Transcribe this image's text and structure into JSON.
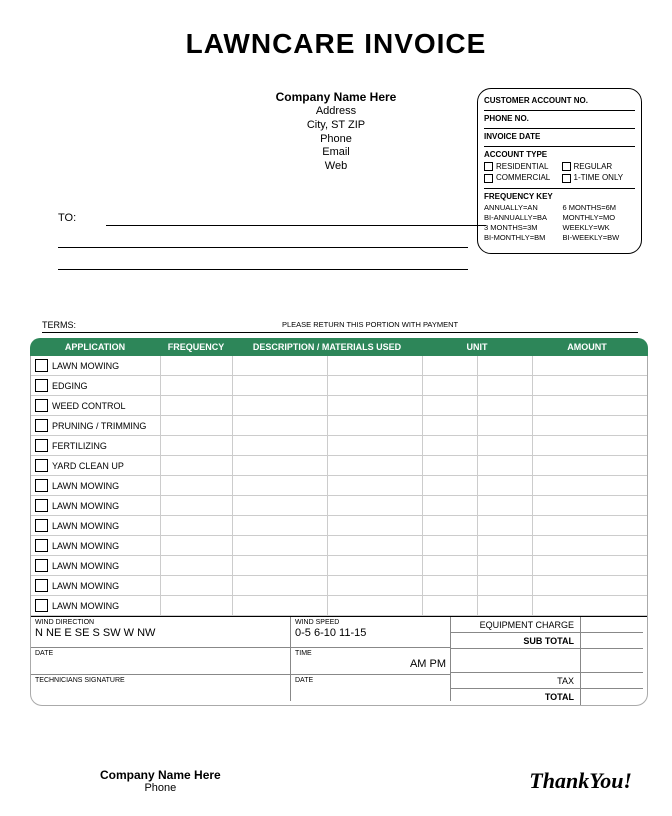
{
  "title": "LAWNCARE INVOICE",
  "company": {
    "name": "Company Name Here",
    "address": "Address",
    "csz": "City, ST ZIP",
    "phone": "Phone",
    "email": "Email",
    "web": "Web"
  },
  "account": {
    "cust_no": "CUSTOMER ACCOUNT NO.",
    "phone_no": "PHONE NO.",
    "inv_date": "INVOICE DATE",
    "acct_type": "ACCOUNT TYPE",
    "opts": [
      "RESIDENTIAL",
      "REGULAR",
      "COMMERCIAL",
      "1-TIME ONLY"
    ],
    "fk_label": "FREQUENCY KEY",
    "fk": [
      "ANNUALLY=AN",
      "6 MONTHS=6M",
      "BI-ANNUALLY=BA",
      "MONTHLY=MO",
      "3 MONTHS=3M",
      "WEEKLY=WK",
      "BI-MONTHLY=BM",
      "BI-WEEKLY=BW"
    ]
  },
  "to": "TO:",
  "terms": "TERMS:",
  "return_note": "PLEASE RETURN THIS PORTION WITH PAYMENT",
  "headers": {
    "app": "APPLICATION",
    "freq": "FREQUENCY",
    "desc": "DESCRIPTION / MATERIALS USED",
    "unit": "UNIT",
    "amount": "AMOUNT"
  },
  "services": [
    "LAWN MOWING",
    "EDGING",
    "WEED CONTROL",
    "PRUNING / TRIMMING",
    "FERTILIZING",
    "YARD CLEAN UP",
    "LAWN MOWING",
    "LAWN MOWING",
    "LAWN MOWING",
    "LAWN MOWING",
    "LAWN MOWING",
    "LAWN MOWING",
    "LAWN MOWING"
  ],
  "bottom": {
    "wd_label": "WIND DIRECTION",
    "wd_val": "N  NE  E  SE  S  SW  W  NW",
    "ws_label": "WIND SPEED",
    "ws_val": "0-5  6-10  11-15",
    "date": "DATE",
    "time": "TIME",
    "ampm": "AM  PM",
    "tech": "TECHNICIANS SIGNATURE",
    "eq": "EQUIPMENT CHARGE",
    "sub": "SUB TOTAL",
    "tax": "TAX",
    "total": "TOTAL"
  },
  "footer": {
    "cname": "Company Name Here",
    "phone": "Phone",
    "thank": "ThankYou!"
  },
  "colors": {
    "header_bg": "#2d8659"
  }
}
